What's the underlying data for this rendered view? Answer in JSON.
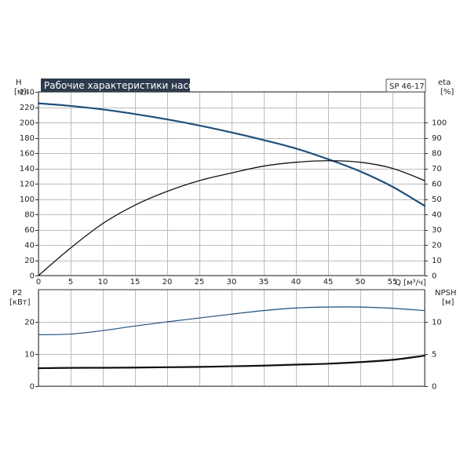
{
  "chart_data": [
    {
      "type": "line",
      "title": "Рабочие характеристики насоса",
      "model": "SP 46-17",
      "xlabel": "Q [м³/ч]",
      "x_ticks": [
        0,
        5,
        10,
        15,
        20,
        25,
        30,
        35,
        40,
        45,
        50,
        55
      ],
      "xlim": [
        0,
        60
      ],
      "y_left": {
        "label_line1": "H",
        "label_line2": "[м]",
        "lim": [
          0,
          240
        ],
        "ticks": [
          0,
          20,
          40,
          60,
          80,
          100,
          120,
          140,
          160,
          180,
          200,
          220,
          240
        ]
      },
      "y_right": {
        "label_line1": "eta",
        "label_line2": "[%]",
        "lim": [
          0,
          120
        ],
        "ticks": [
          0,
          10,
          20,
          30,
          40,
          50,
          60,
          70,
          80,
          90,
          100
        ]
      },
      "grid": true,
      "series": [
        {
          "key": "head",
          "axis": "left",
          "color": "#1f4e79",
          "width": 2.2,
          "x": [
            0,
            4.5,
            10,
            15,
            20,
            25,
            30,
            35,
            40,
            45,
            50,
            55,
            60
          ],
          "y": [
            225,
            222,
            217,
            211,
            204,
            196,
            187,
            177,
            166,
            152,
            136,
            116,
            91
          ]
        },
        {
          "key": "efficiency",
          "axis": "right",
          "color": "#111111",
          "width": 1.3,
          "x": [
            0,
            5,
            10,
            15,
            20,
            25,
            30,
            35,
            40,
            45,
            50,
            55,
            60
          ],
          "y": [
            0,
            18,
            34,
            46,
            55,
            62,
            67,
            71.5,
            74,
            75,
            74,
            70,
            62
          ]
        }
      ]
    },
    {
      "type": "line",
      "xlim": [
        0,
        60
      ],
      "y_left": {
        "label_line1": "P2",
        "label_line2": "[кВт]",
        "lim": [
          0,
          30
        ],
        "ticks": [
          0,
          10,
          20
        ]
      },
      "y_right": {
        "label_line1": "NPSH",
        "label_line2": "[м]",
        "lim": [
          0,
          15
        ],
        "ticks": [
          0,
          5,
          10
        ]
      },
      "grid": true,
      "series": [
        {
          "key": "power",
          "axis": "left",
          "color": "#1f4e79",
          "width": 1.2,
          "x": [
            0,
            5,
            10,
            15,
            20,
            25,
            30,
            35,
            40,
            45,
            50,
            55,
            60
          ],
          "y": [
            16,
            16.2,
            17.3,
            18.7,
            20,
            21.2,
            22.4,
            23.5,
            24.3,
            24.6,
            24.6,
            24.2,
            23.5
          ]
        },
        {
          "key": "npsh",
          "axis": "right",
          "color": "#111111",
          "width": 2.2,
          "x": [
            0,
            5,
            10,
            15,
            20,
            25,
            30,
            35,
            40,
            45,
            50,
            55,
            60
          ],
          "y": [
            2.8,
            2.85,
            2.87,
            2.9,
            2.95,
            3.0,
            3.1,
            3.2,
            3.35,
            3.5,
            3.75,
            4.1,
            4.75
          ]
        }
      ]
    }
  ]
}
